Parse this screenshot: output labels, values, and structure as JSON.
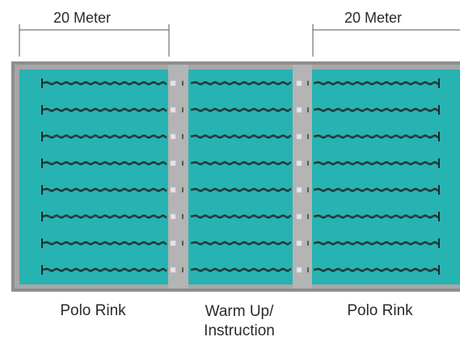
{
  "dimensions": {
    "left": {
      "text": "20 Meter"
    },
    "right": {
      "text": "20 Meter"
    }
  },
  "zones": {
    "left": {
      "name": "Polo Rink"
    },
    "center": {
      "line1": "Warm Up/",
      "line2": "Instruction"
    },
    "right": {
      "name": "Polo Rink"
    }
  },
  "lane_lines_per_section": 8,
  "colors": {
    "water": "#27b3b1",
    "water_dark": "#1b9d9b",
    "deck": "#a7a7a7",
    "deck_dark": "#8e8e8e",
    "rope": "#1a2a2a",
    "float": "#e6e6e6",
    "text": "#2a2a2a"
  }
}
